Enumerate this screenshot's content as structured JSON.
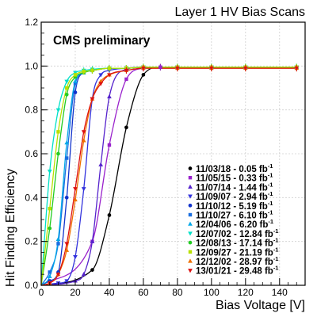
{
  "chart_data": {
    "type": "scatter",
    "title": "Layer 1 HV Bias Scans",
    "annotation": "CMS preliminary",
    "xlabel": "Bias Voltage [V]",
    "ylabel": "Hit Finding Efficiency",
    "xlim": [
      0,
      155
    ],
    "ylim": [
      0,
      1.2
    ],
    "xticks": [
      0,
      20,
      40,
      60,
      80,
      100,
      120,
      140
    ],
    "yticks": [
      0,
      0.2,
      0.4,
      0.6,
      0.8,
      1.0,
      1.2
    ],
    "xtick_labels": [
      "0",
      "20",
      "40",
      "60",
      "80",
      "100",
      "120",
      "140"
    ],
    "ytick_labels": [
      "0.0",
      "0.2",
      "0.4",
      "0.6",
      "0.8",
      "1.0",
      "1.2"
    ],
    "grid": true,
    "legend_position": "bottom-right",
    "series": [
      {
        "label": "11/03/18 - 0.05 fb",
        "sup": "-1",
        "color": "#000000",
        "marker": "circle",
        "x": [
          30,
          40,
          50,
          60,
          70,
          80,
          100,
          120,
          150
        ],
        "y": [
          0.07,
          0.32,
          0.72,
          0.96,
          0.995,
          0.995,
          0.995,
          0.995,
          0.995
        ],
        "plateau": 0.995
      },
      {
        "label": "11/05/15 - 0.33 fb",
        "sup": "-1",
        "color": "#9a22cc",
        "marker": "square",
        "x": [
          30,
          40,
          50,
          60,
          70,
          80,
          100,
          120,
          150
        ],
        "y": [
          0.2,
          0.64,
          0.94,
          0.99,
          0.995,
          0.995,
          0.995,
          0.995,
          0.995
        ],
        "plateau": 0.995
      },
      {
        "label": "11/07/14 - 1.44 fb",
        "sup": "-1",
        "color": "#5522cc",
        "marker": "triangle-up",
        "x": [
          20,
          25,
          30,
          35,
          40,
          50,
          60,
          80,
          100,
          120,
          150
        ],
        "y": [
          0.02,
          0.05,
          0.2,
          0.55,
          0.86,
          0.985,
          0.995,
          0.995,
          0.995,
          0.995,
          0.995
        ],
        "plateau": 0.995
      },
      {
        "label": "11/09/07 - 2.94 fb",
        "sup": "-1",
        "color": "#3333dd",
        "marker": "triangle-down",
        "x": [
          10,
          15,
          20,
          25,
          30,
          35,
          40,
          50,
          60,
          80,
          100,
          120,
          150
        ],
        "y": [
          0.01,
          0.02,
          0.13,
          0.44,
          0.85,
          0.96,
          0.98,
          0.99,
          0.995,
          0.995,
          0.995,
          0.995,
          0.995
        ],
        "plateau": 0.995
      },
      {
        "label": "11/10/12 - 5.19 fb",
        "sup": "-1",
        "color": "#1133cc",
        "marker": "circle",
        "x": [
          5,
          10,
          15,
          20,
          25,
          30,
          40,
          50,
          60,
          80,
          100,
          120,
          150
        ],
        "y": [
          0.02,
          0.06,
          0.4,
          0.88,
          0.97,
          0.98,
          0.99,
          0.99,
          0.995,
          0.995,
          0.995,
          0.995,
          0.995
        ],
        "plateau": 0.995
      },
      {
        "label": "11/10/27 - 6.10 fb",
        "sup": "-1",
        "color": "#1a6ee0",
        "marker": "square",
        "x": [
          5,
          10,
          15,
          20,
          25,
          30,
          40,
          50,
          60,
          80,
          100,
          120,
          150
        ],
        "y": [
          0.06,
          0.19,
          0.58,
          0.92,
          0.97,
          0.98,
          0.99,
          0.99,
          0.995,
          0.995,
          0.995,
          0.995,
          0.995
        ],
        "plateau": 0.995
      },
      {
        "label": "12/04/06 - 6.20 fb",
        "sup": "-1",
        "color": "#00a8e8",
        "marker": "triangle-up",
        "x": [
          5,
          10,
          15,
          20,
          25,
          30,
          40,
          50,
          60,
          80,
          100,
          120,
          150
        ],
        "y": [
          0.04,
          0.21,
          0.65,
          0.93,
          0.97,
          0.98,
          0.99,
          0.99,
          0.995,
          0.995,
          0.995,
          0.995,
          0.995
        ],
        "plateau": 0.995
      },
      {
        "label": "12/07/02 - 12.84 fb",
        "sup": "-1",
        "color": "#00e0c8",
        "marker": "triangle-down",
        "x": [
          5,
          10,
          15,
          20,
          25,
          30,
          40,
          50,
          60,
          80,
          100,
          120,
          150
        ],
        "y": [
          0.52,
          0.8,
          0.93,
          0.97,
          0.98,
          0.985,
          0.99,
          0.99,
          0.995,
          0.995,
          0.995,
          0.995,
          0.995
        ],
        "plateau": 0.995
      },
      {
        "label": "12/08/13 - 17.14 fb",
        "sup": "-1",
        "color": "#22cc22",
        "marker": "circle",
        "x": [
          5,
          10,
          15,
          20,
          25,
          30,
          40,
          50,
          60,
          80,
          100,
          120,
          150
        ],
        "y": [
          0.26,
          0.6,
          0.87,
          0.95,
          0.97,
          0.98,
          0.99,
          0.99,
          0.995,
          0.995,
          0.995,
          0.995,
          0.995
        ],
        "plateau": 0.995
      },
      {
        "label": "12/09/27 - 21.19 fb",
        "sup": "-1",
        "color": "#b8e000",
        "marker": "square",
        "x": [
          5,
          10,
          15,
          20,
          25,
          30,
          40,
          50,
          60,
          80,
          100,
          120,
          150
        ],
        "y": [
          0.35,
          0.7,
          0.9,
          0.96,
          0.975,
          0.98,
          0.99,
          0.99,
          0.995,
          0.995,
          0.995,
          0.995,
          0.995
        ],
        "plateau": 0.995
      },
      {
        "label": "12/12/02 - 28.97 fb",
        "sup": "-1",
        "color": "#f07000",
        "marker": "triangle-up",
        "x": [
          5,
          10,
          15,
          20,
          25,
          30,
          35,
          40,
          50,
          60,
          80,
          100,
          120,
          150
        ],
        "y": [
          0.01,
          0.05,
          0.16,
          0.39,
          0.66,
          0.85,
          0.93,
          0.96,
          0.98,
          0.99,
          0.99,
          0.99,
          0.99,
          0.99
        ],
        "plateau": 0.99
      },
      {
        "label": "13/01/21 - 29.48 fb",
        "sup": "-1",
        "color": "#dd1111",
        "marker": "triangle-down",
        "x": [
          5,
          10,
          15,
          20,
          25,
          30,
          35,
          40,
          50,
          60,
          80,
          100,
          120,
          150
        ],
        "y": [
          0.01,
          0.05,
          0.19,
          0.44,
          0.7,
          0.85,
          0.92,
          0.96,
          0.98,
          0.99,
          0.99,
          0.99,
          0.99,
          0.99
        ],
        "plateau": 0.99
      }
    ]
  }
}
